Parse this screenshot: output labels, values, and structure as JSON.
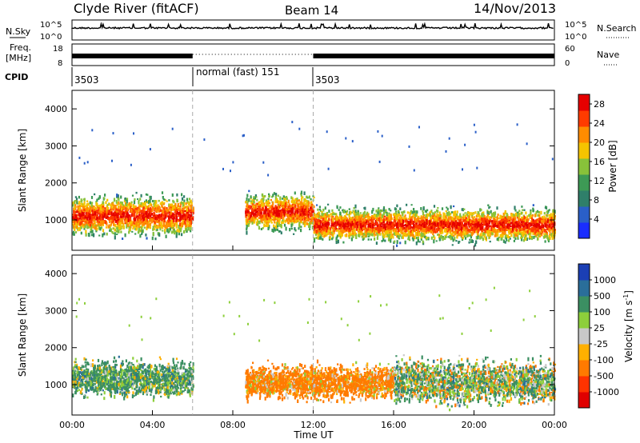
{
  "header": {
    "station": "Clyde River (fitACF)",
    "beam": "Beam 14",
    "date": "14/Nov/2013"
  },
  "strip_labels": {
    "nsky": "N.Sky",
    "freq_line1": "Freq.",
    "freq_line2": "[MHz]",
    "cpid": "CPID",
    "nsearch": "N.Search",
    "nave": "Nave",
    "nsky_ticks": [
      "10^5",
      "10^0"
    ],
    "nsearch_ticks": [
      "10^5",
      "10^0"
    ],
    "freq_ticks": [
      "18",
      "8"
    ],
    "nave_ticks": [
      "60",
      "0"
    ]
  },
  "cpid_segments": [
    {
      "label": "3503",
      "start_hour": 0
    },
    {
      "label": "normal (fast) 151",
      "start_hour": 6
    },
    {
      "label": "3503",
      "start_hour": 12
    }
  ],
  "chart_data": [
    {
      "type": "heatmap",
      "panel": "power",
      "ylabel": "Slant Range [km]",
      "xlabel": "",
      "x_ticks": [
        "00:00",
        "04:00",
        "08:00",
        "12:00",
        "16:00",
        "20:00",
        "00:00"
      ],
      "y_ticks": [
        1000,
        2000,
        3000,
        4000
      ],
      "xlim_hours": [
        0,
        24
      ],
      "ylim_km": [
        180,
        4500
      ],
      "colorbar": {
        "label": "Power [dB]",
        "ticks": [
          4,
          8,
          12,
          16,
          20,
          24,
          28
        ],
        "range": [
          0,
          30
        ],
        "colors": [
          "#1a2dff",
          "#2a5fc8",
          "#2f7f6a",
          "#3d9a55",
          "#88c23a",
          "#f5c400",
          "#ff8c00",
          "#ff3b00",
          "#e60000"
        ]
      },
      "scatter_regions": [
        {
          "t0": 0.0,
          "t1": 6.0,
          "r_center": 1150,
          "r_spread": 700,
          "dominant": "red-orange"
        },
        {
          "t0": 8.6,
          "t1": 12.0,
          "r_center": 1250,
          "r_spread": 650,
          "dominant": "red-orange"
        },
        {
          "t0": 12.0,
          "t1": 24.0,
          "r_center": 900,
          "r_spread": 600,
          "dominant": "red"
        }
      ]
    },
    {
      "type": "heatmap",
      "panel": "velocity",
      "ylabel": "Slant Range [km]",
      "xlabel": "Time UT",
      "x_ticks": [
        "00:00",
        "04:00",
        "08:00",
        "12:00",
        "16:00",
        "20:00",
        "00:00"
      ],
      "y_ticks": [
        1000,
        2000,
        3000,
        4000
      ],
      "xlim_hours": [
        0,
        24
      ],
      "ylim_km": [
        180,
        4500
      ],
      "colorbar": {
        "label": "Velocity [m s^-1]",
        "ticks": [
          "1000",
          "500",
          "100",
          "25",
          "-25",
          "-100",
          "-500",
          "-1000"
        ],
        "colors": [
          "#1b3fb5",
          "#2a6e9a",
          "#3b8f62",
          "#8dcf3b",
          "#c8c8c8",
          "#ffb000",
          "#ff7a00",
          "#ff3300",
          "#e00000"
        ]
      },
      "scatter_regions": [
        {
          "t0": 0.0,
          "t1": 6.0,
          "r_center": 1200,
          "r_spread": 650,
          "dominant": "green"
        },
        {
          "t0": 8.6,
          "t1": 16.0,
          "r_center": 1100,
          "r_spread": 600,
          "dominant": "orange"
        },
        {
          "t0": 16.0,
          "t1": 24.0,
          "r_center": 1100,
          "r_spread": 800,
          "dominant": "green-orange"
        }
      ]
    }
  ]
}
